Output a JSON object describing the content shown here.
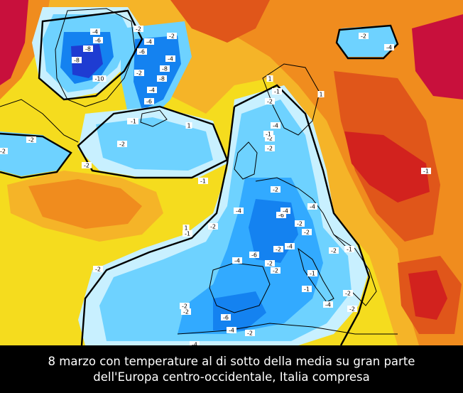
{
  "caption": {
    "line1": "8 marzo con temperature al di sotto della media su gran parte",
    "line2": "dell'Europa centro-occidentale, Italia compresa"
  },
  "colors": {
    "very_warm": "#c8103c",
    "warm_red": "#d2221e",
    "warm_dark_orange": "#e0561a",
    "warm_orange": "#f08c1e",
    "warm_light_orange": "#f5b428",
    "mild_yellow": "#f5dc1e",
    "neutral": "#ffffff",
    "cool_light": "#c8f0ff",
    "cool_cyan": "#6ed2ff",
    "cool_blue": "#32aaff",
    "cold_blue": "#1482f0",
    "very_cold_blue": "#1e3cd2",
    "coastline": "#000000",
    "caption_background": "#000000",
    "caption_text": "#ffffff"
  },
  "contour_labels": [
    {
      "text": "-4"
    },
    {
      "text": "-6"
    },
    {
      "text": "-8"
    },
    {
      "text": "-8"
    },
    {
      "text": "-10"
    },
    {
      "text": "-2"
    },
    {
      "text": "-4"
    },
    {
      "text": "-6"
    },
    {
      "text": "-8"
    },
    {
      "text": "-8"
    },
    {
      "text": "-2"
    },
    {
      "text": "-4"
    },
    {
      "text": "-4"
    },
    {
      "text": "-6"
    },
    {
      "text": "-4"
    },
    {
      "text": "-2"
    },
    {
      "text": "-2"
    },
    {
      "text": "-2"
    },
    {
      "text": "-2"
    },
    {
      "text": "-1"
    },
    {
      "text": "1"
    },
    {
      "text": "-1"
    },
    {
      "text": "-2"
    },
    {
      "text": "-2"
    },
    {
      "text": "-4"
    },
    {
      "text": "-2"
    },
    {
      "text": "-1"
    },
    {
      "text": "-2"
    },
    {
      "text": "-4"
    },
    {
      "text": "-6"
    },
    {
      "text": "-4"
    },
    {
      "text": "-2"
    },
    {
      "text": "-2"
    },
    {
      "text": "-4"
    },
    {
      "text": "-2"
    },
    {
      "text": "-6"
    },
    {
      "text": "-4"
    },
    {
      "text": "-2"
    },
    {
      "text": "-2"
    },
    {
      "text": "-4"
    },
    {
      "text": "-1"
    },
    {
      "text": "-2"
    },
    {
      "text": "-1"
    },
    {
      "text": "-1"
    },
    {
      "text": "-4"
    },
    {
      "text": "-2"
    },
    {
      "text": "-2"
    },
    {
      "text": "-6"
    },
    {
      "text": "-4"
    },
    {
      "text": "-4"
    },
    {
      "text": "-2"
    },
    {
      "text": "-2"
    },
    {
      "text": "1"
    },
    {
      "text": "-2"
    },
    {
      "text": "-2"
    },
    {
      "text": "-1"
    },
    {
      "text": "-2"
    },
    {
      "text": "-1"
    },
    {
      "text": "-2"
    },
    {
      "text": "-1"
    },
    {
      "text": "-2"
    },
    {
      "text": "-4"
    },
    {
      "text": "1"
    },
    {
      "text": "1"
    }
  ]
}
